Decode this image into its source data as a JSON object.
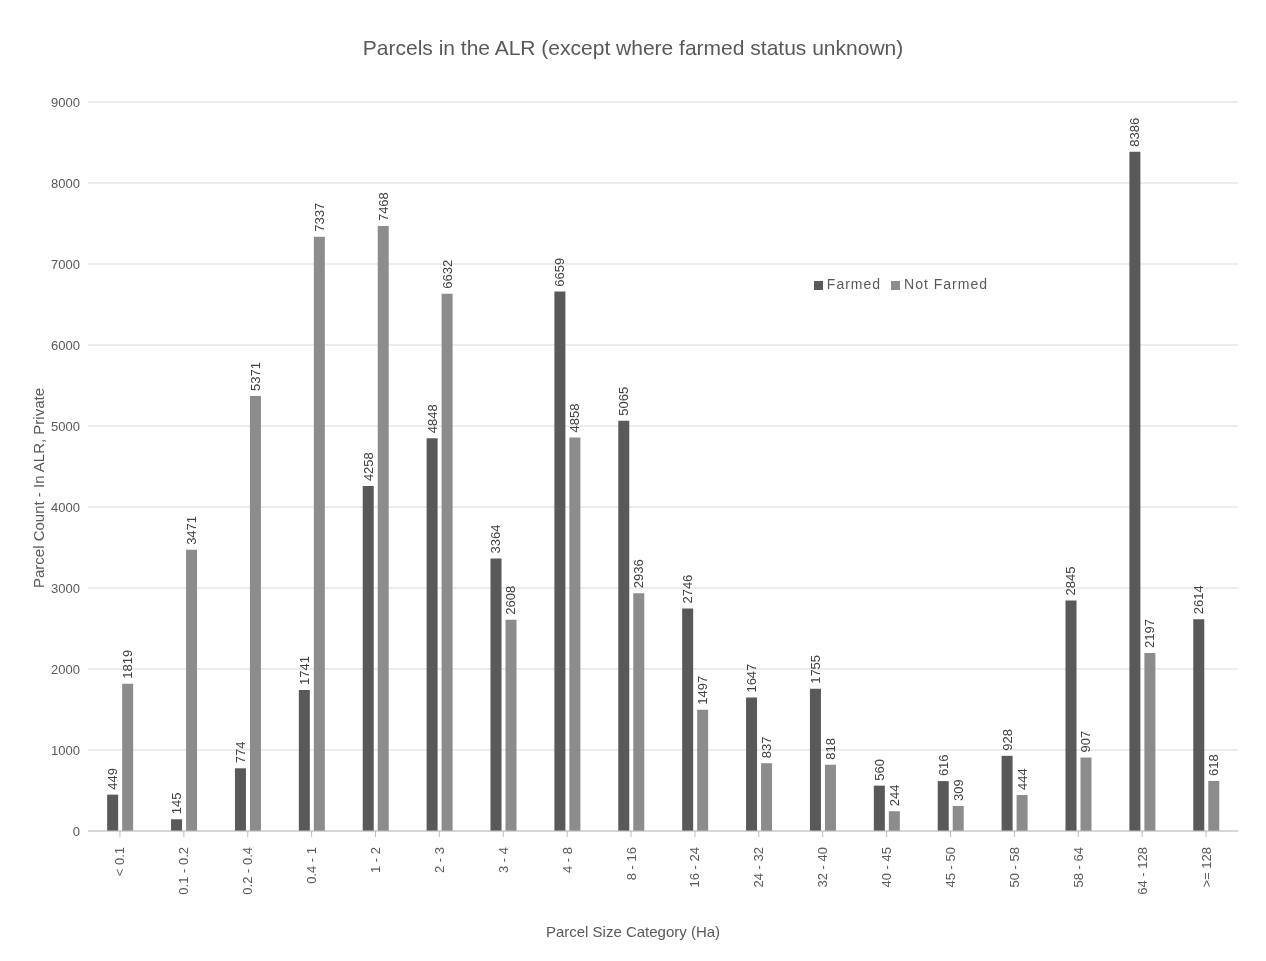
{
  "chart_data": {
    "type": "bar",
    "title": "Parcels in the ALR (except where farmed status unknown)",
    "xlabel": "Parcel Size Category (Ha)",
    "ylabel": "Parcel Count - In ALR, Private",
    "categories": [
      "< 0.1",
      "0.1 - 0.2",
      "0.2 - 0.4",
      "0.4 - 1",
      "1 - 2",
      "2 - 3",
      "3 - 4",
      "4 - 8",
      "8 - 16",
      "16 - 24",
      "24 - 32",
      "32 - 40",
      "40 - 45",
      "45 - 50",
      "50 - 58",
      "58 - 64",
      "64 - 128",
      ">= 128"
    ],
    "series": [
      {
        "name": "Farmed",
        "color": "#595959",
        "values": [
          449,
          145,
          774,
          1741,
          4258,
          4848,
          3364,
          6659,
          5065,
          2746,
          1647,
          1755,
          560,
          616,
          928,
          2845,
          8386,
          2614
        ]
      },
      {
        "name": "Not Farmed",
        "color": "#8c8c8c",
        "values": [
          1819,
          3471,
          5371,
          7337,
          7468,
          6632,
          2608,
          4858,
          2936,
          1497,
          837,
          818,
          244,
          309,
          444,
          907,
          2197,
          618
        ]
      }
    ],
    "ylim": [
      0,
      9000
    ],
    "yticks": [
      0,
      1000,
      2000,
      3000,
      4000,
      5000,
      6000,
      7000,
      8000,
      9000
    ],
    "grid": "y",
    "legend": "top right",
    "data_labels": true
  }
}
